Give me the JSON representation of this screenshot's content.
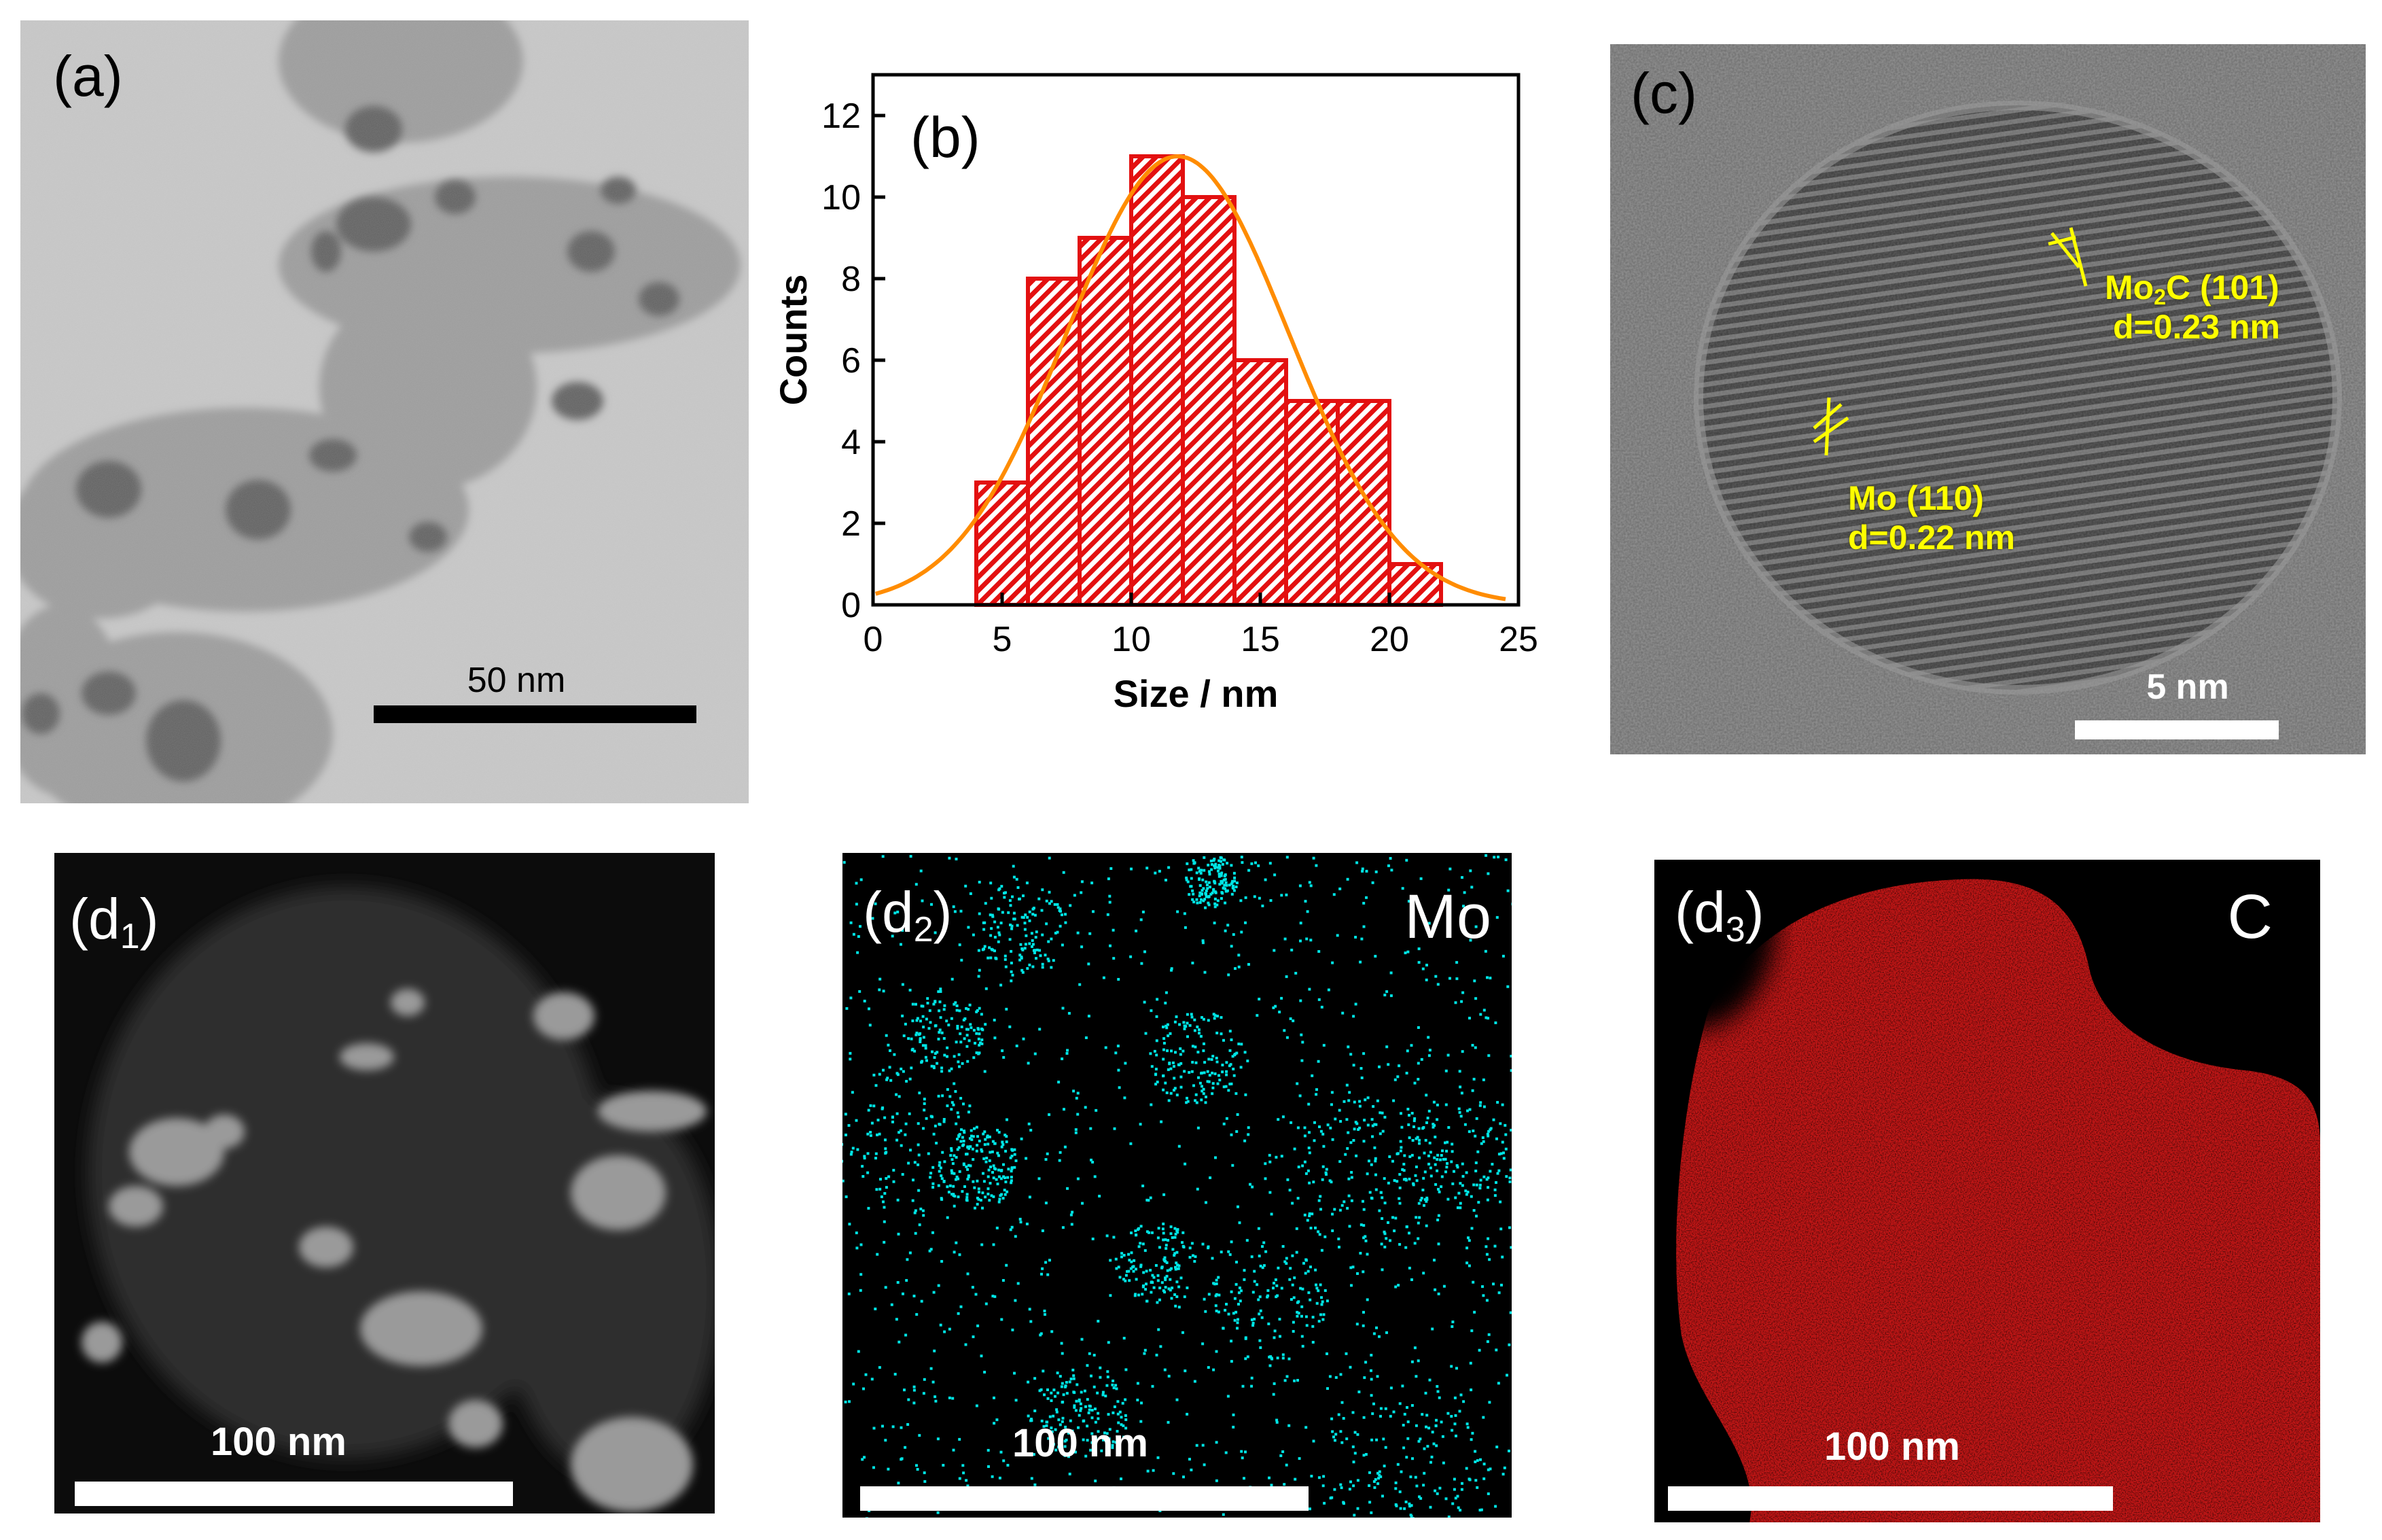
{
  "panels": {
    "a": {
      "label": "(a)",
      "scale_bar": "50 nm"
    },
    "b": {
      "label": "(b)"
    },
    "c": {
      "label": "(c)",
      "scale_bar": "5 nm",
      "annotation_mo2c_phase": "Mo",
      "annotation_mo2c_sub": "2",
      "annotation_mo2c_rest": "C  (101)",
      "annotation_mo2c_d": "d=0.23 nm",
      "annotation_mo_phase": "Mo  (110)",
      "annotation_mo_d": "d=0.22 nm",
      "color_annotation": "#ffff00"
    },
    "d1": {
      "label_main": "(d",
      "label_sub": "1",
      "label_close": ")",
      "scale_bar": "100 nm"
    },
    "d2": {
      "label_main": "(d",
      "label_sub": "2",
      "label_close": ")",
      "element": "Mo",
      "scale_bar": "100 nm",
      "color_map": "#00e5e5"
    },
    "d3": {
      "label_main": "(d",
      "label_sub": "3",
      "label_close": ")",
      "element": "C",
      "scale_bar": "100 nm",
      "color_map": "#d81010"
    }
  },
  "chart_data": {
    "type": "bar",
    "bin_edges": [
      4,
      6,
      8,
      10,
      12,
      14,
      16,
      18,
      20,
      22
    ],
    "values": [
      3,
      8,
      9,
      11,
      10,
      6,
      5,
      5,
      1
    ],
    "fit": {
      "type": "gaussian",
      "center": 11.8,
      "sigma": 4.3,
      "peak": 11.0
    },
    "xlabel": "Size / nm",
    "ylabel": "Counts",
    "xlim": [
      0,
      25
    ],
    "ylim": [
      0,
      13
    ],
    "xticks": [
      0,
      5,
      10,
      15,
      20,
      25
    ],
    "yticks": [
      0,
      2,
      4,
      6,
      8,
      10,
      12
    ],
    "bar_color": "#e31010",
    "fit_color": "#ff8c00",
    "grid": false
  }
}
